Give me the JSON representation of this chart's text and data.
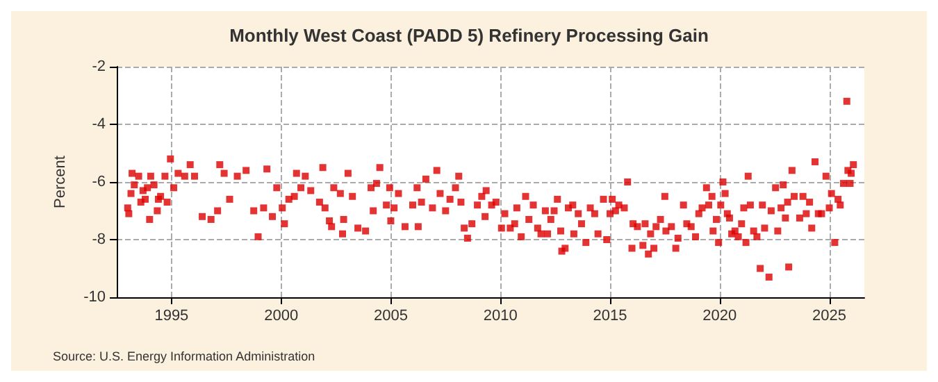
{
  "chart_data": {
    "type": "scatter",
    "title": "Monthly West Coast (PADD 5) Refinery Processing Gain",
    "ylabel": "Percent",
    "annotations": [
      "Source: U.S. Energy Information Administration"
    ],
    "x": [
      1993.0,
      1993.05,
      1993.15,
      1993.2,
      1993.3,
      1993.5,
      1993.6,
      1993.7,
      1993.8,
      1993.9,
      1994.0,
      1994.05,
      1994.2,
      1994.35,
      1994.4,
      1994.5,
      1994.7,
      1994.8,
      1994.95,
      1995.1,
      1995.3,
      1995.6,
      1995.85,
      1996.05,
      1996.4,
      1996.8,
      1997.1,
      1997.2,
      1997.4,
      1997.65,
      1998.0,
      1998.4,
      1998.75,
      1998.95,
      1999.2,
      1999.35,
      1999.6,
      1999.8,
      2000.05,
      2000.15,
      2000.35,
      2000.6,
      2000.7,
      2000.9,
      2001.1,
      2001.35,
      2001.75,
      2001.9,
      2002.0,
      2002.2,
      2002.3,
      2002.4,
      2002.7,
      2002.8,
      2002.85,
      2003.05,
      2003.25,
      2003.5,
      2003.85,
      2004.1,
      2004.2,
      2004.35,
      2004.5,
      2004.8,
      2004.95,
      2005.0,
      2005.15,
      2005.35,
      2005.65,
      2006.0,
      2006.2,
      2006.25,
      2006.4,
      2006.6,
      2006.9,
      2007.1,
      2007.25,
      2007.5,
      2007.7,
      2007.95,
      2008.1,
      2008.2,
      2008.35,
      2008.5,
      2008.7,
      2008.95,
      2009.15,
      2009.3,
      2009.35,
      2009.6,
      2009.8,
      2010.05,
      2010.2,
      2010.45,
      2010.65,
      2010.75,
      2010.95,
      2011.15,
      2011.3,
      2011.5,
      2011.7,
      2011.85,
      2012.05,
      2012.15,
      2012.3,
      2012.45,
      2012.6,
      2012.75,
      2012.8,
      2012.95,
      2013.1,
      2013.3,
      2013.35,
      2013.55,
      2013.7,
      2013.9,
      2014.1,
      2014.3,
      2014.45,
      2014.7,
      2014.85,
      2015.0,
      2015.1,
      2015.25,
      2015.4,
      2015.65,
      2015.8,
      2016.0,
      2016.05,
      2016.25,
      2016.5,
      2016.6,
      2016.75,
      2016.85,
      2017.0,
      2017.1,
      2017.3,
      2017.5,
      2017.55,
      2017.8,
      2018.0,
      2018.1,
      2018.35,
      2018.5,
      2018.7,
      2018.9,
      2019.05,
      2019.2,
      2019.4,
      2019.5,
      2019.65,
      2019.7,
      2019.85,
      2019.95,
      2020.05,
      2020.15,
      2020.25,
      2020.35,
      2020.45,
      2020.55,
      2020.7,
      2020.85,
      2021.0,
      2021.1,
      2021.2,
      2021.3,
      2021.4,
      2021.55,
      2021.7,
      2021.85,
      2021.95,
      2022.05,
      2022.25,
      2022.35,
      2022.55,
      2022.65,
      2022.8,
      2022.9,
      2023.0,
      2023.1,
      2023.15,
      2023.3,
      2023.4,
      2023.65,
      2023.8,
      2023.95,
      2024.1,
      2024.2,
      2024.35,
      2024.5,
      2024.65,
      2024.85,
      2025.0,
      2025.1,
      2025.25,
      2025.4,
      2025.5,
      2025.65,
      2025.8,
      2025.85,
      2025.95,
      2026.0,
      2026.1
    ],
    "values": [
      -6.9,
      -7.1,
      -6.4,
      -5.7,
      -6.1,
      -5.8,
      -6.7,
      -6.3,
      -6.6,
      -6.2,
      -7.3,
      -5.8,
      -6.1,
      -7.0,
      -6.6,
      -6.5,
      -5.8,
      -6.7,
      -5.2,
      -6.2,
      -5.7,
      -5.8,
      -5.4,
      -5.8,
      -7.2,
      -7.3,
      -7.0,
      -5.4,
      -5.7,
      -6.6,
      -5.8,
      -5.6,
      -7.0,
      -7.9,
      -6.9,
      -5.55,
      -7.2,
      -6.2,
      -6.9,
      -7.45,
      -6.6,
      -6.5,
      -5.7,
      -6.2,
      -5.8,
      -6.3,
      -6.7,
      -5.5,
      -6.9,
      -7.35,
      -7.55,
      -6.2,
      -6.4,
      -7.8,
      -7.3,
      -5.7,
      -6.5,
      -7.6,
      -7.7,
      -6.2,
      -7.0,
      -6.05,
      -5.5,
      -6.8,
      -6.2,
      -7.35,
      -6.9,
      -6.4,
      -7.55,
      -6.8,
      -6.2,
      -7.55,
      -6.7,
      -5.9,
      -6.9,
      -5.6,
      -6.4,
      -7.0,
      -6.6,
      -6.2,
      -5.8,
      -6.7,
      -7.6,
      -7.95,
      -7.45,
      -6.8,
      -6.5,
      -7.2,
      -6.3,
      -6.8,
      -6.7,
      -7.6,
      -7.1,
      -7.6,
      -7.45,
      -6.9,
      -7.9,
      -6.5,
      -7.3,
      -6.8,
      -7.6,
      -7.8,
      -7.0,
      -7.8,
      -7.3,
      -7.0,
      -6.6,
      -7.7,
      -8.4,
      -8.3,
      -6.9,
      -6.8,
      -7.8,
      -7.1,
      -7.45,
      -8.1,
      -6.9,
      -7.1,
      -7.8,
      -6.6,
      -8.0,
      -7.1,
      -6.6,
      -7.0,
      -6.8,
      -6.9,
      -6.0,
      -8.3,
      -7.45,
      -7.55,
      -8.2,
      -7.45,
      -8.5,
      -7.8,
      -8.3,
      -7.55,
      -7.3,
      -6.5,
      -7.7,
      -7.55,
      -8.3,
      -7.95,
      -6.8,
      -7.45,
      -7.55,
      -7.9,
      -7.1,
      -6.9,
      -6.2,
      -6.8,
      -6.5,
      -7.7,
      -7.3,
      -8.1,
      -6.8,
      -6.0,
      -6.4,
      -7.1,
      -7.25,
      -7.8,
      -7.7,
      -7.9,
      -7.45,
      -6.9,
      -8.1,
      -5.8,
      -6.8,
      -7.7,
      -7.9,
      -9.0,
      -6.8,
      -7.6,
      -9.3,
      -7.0,
      -6.2,
      -7.7,
      -6.9,
      -6.1,
      -7.25,
      -6.7,
      -8.95,
      -5.6,
      -6.5,
      -7.25,
      -6.5,
      -7.1,
      -6.7,
      -7.6,
      -5.3,
      -7.1,
      -7.1,
      -5.8,
      -6.9,
      -6.4,
      -8.1,
      -6.6,
      -6.8,
      -6.05,
      -3.2,
      -5.6,
      -6.05,
      -5.7,
      -5.4
    ],
    "color": "#dd0000",
    "marker": "square",
    "xlim": [
      1992.5,
      2026.6
    ],
    "xticks": [
      1995,
      2000,
      2005,
      2010,
      2015,
      2020,
      2025
    ],
    "ylim": [
      -10,
      -2
    ],
    "yticks": [
      -10,
      -8,
      -6,
      -4,
      -2
    ],
    "grid": true
  }
}
